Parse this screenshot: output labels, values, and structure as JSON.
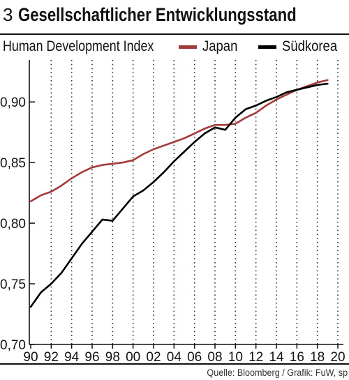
{
  "header": {
    "number": "3",
    "title": "Gesellschaftlicher Entwicklungsstand",
    "subtitle": "Human Development Index"
  },
  "footer": {
    "source": "Quelle: Bloomberg / Grafik: FuW, sp"
  },
  "colors": {
    "japan": "#a33a3a",
    "korea": "#000000",
    "grid": "#333333"
  },
  "chart_data": {
    "type": "line",
    "title": "Gesellschaftlicher Entwicklungsstand",
    "subtitle": "Human Development Index",
    "xlim": [
      1990,
      2020
    ],
    "ylim": [
      0.7,
      0.93
    ],
    "x_ticks": [
      1990,
      1992,
      1994,
      1996,
      1998,
      2000,
      2002,
      2004,
      2006,
      2008,
      2010,
      2012,
      2014,
      2016,
      2018,
      2020
    ],
    "x_tick_labels": [
      "90",
      "92",
      "94",
      "96",
      "98",
      "00",
      "02",
      "04",
      "06",
      "08",
      "10",
      "12",
      "14",
      "16",
      "18",
      "20"
    ],
    "y_ticks": [
      0.7,
      0.75,
      0.8,
      0.85,
      0.9
    ],
    "y_tick_labels": [
      "0,70",
      "0,75",
      "0,80",
      "0,85",
      "0,90"
    ],
    "grid": "vertical-dotted",
    "legend": "top-right",
    "x": [
      1990,
      1991,
      1992,
      1993,
      1994,
      1995,
      1996,
      1997,
      1998,
      1999,
      2000,
      2001,
      2002,
      2003,
      2004,
      2005,
      2006,
      2007,
      2008,
      2009,
      2010,
      2011,
      2012,
      2013,
      2014,
      2015,
      2016,
      2017,
      2018,
      2019
    ],
    "series": [
      {
        "name": "Japan",
        "values": [
          0.818,
          0.823,
          0.826,
          0.831,
          0.837,
          0.842,
          0.846,
          0.848,
          0.849,
          0.85,
          0.852,
          0.857,
          0.861,
          0.864,
          0.867,
          0.87,
          0.874,
          0.878,
          0.881,
          0.881,
          0.882,
          0.887,
          0.891,
          0.897,
          0.902,
          0.906,
          0.91,
          0.913,
          0.916,
          0.918
        ]
      },
      {
        "name": "Südkorea",
        "values": [
          0.731,
          0.743,
          0.75,
          0.759,
          0.771,
          0.783,
          0.793,
          0.803,
          0.802,
          0.812,
          0.822,
          0.827,
          0.834,
          0.842,
          0.851,
          0.859,
          0.867,
          0.874,
          0.879,
          0.877,
          0.887,
          0.894,
          0.897,
          0.901,
          0.904,
          0.908,
          0.91,
          0.912,
          0.914,
          0.915
        ]
      }
    ]
  }
}
